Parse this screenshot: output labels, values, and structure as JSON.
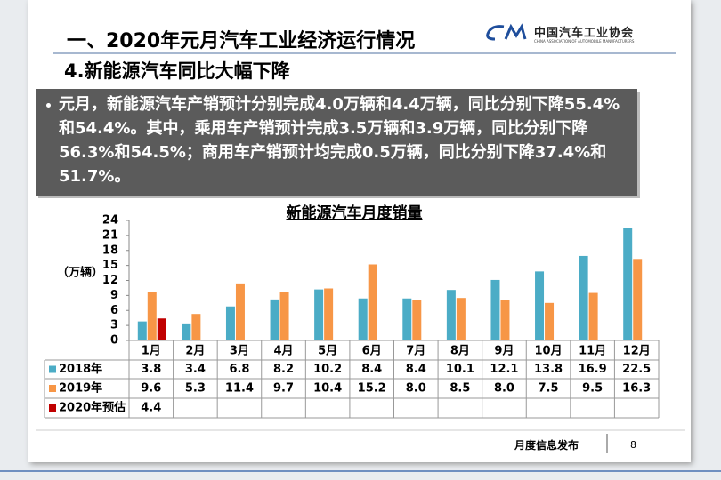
{
  "slide": {
    "header_title": "一、2020年元月汽车工业经济运行情况",
    "logo_name": "中国汽车工业协会",
    "logo_english": "CHINA ASSOCIATION OF AUTOMOBILE MANUFACTURERS",
    "subtitle": "4.新能源汽车同比大幅下降",
    "bullet": "元月，新能源汽车产销预计分别完成4.0万辆和4.4万辆，同比分别下降55.4%和54.4%。其中，乘用车产销预计完成3.5万辆和3.9万辆，同比分别下降56.3%和54.5%；商用车产销预计均完成0.5万辆，同比分别下降37.4%和51.7%。",
    "footer": "月度信息发布",
    "page_number": "8"
  },
  "chart_data": {
    "type": "bar",
    "title": "新能源汽车月度销量",
    "y_label": "（万辆）",
    "categories": [
      "1月",
      "2月",
      "3月",
      "4月",
      "5月",
      "6月",
      "7月",
      "8月",
      "9月",
      "10月",
      "11月",
      "12月"
    ],
    "series": [
      {
        "name": "2018年",
        "color": "#4bacc6",
        "values": [
          3.8,
          3.4,
          6.8,
          8.2,
          10.2,
          8.4,
          8.4,
          10.1,
          12.1,
          13.8,
          16.9,
          22.5
        ]
      },
      {
        "name": "2019年",
        "color": "#f79646",
        "values": [
          9.6,
          5.3,
          11.4,
          9.7,
          10.4,
          15.2,
          8.0,
          8.5,
          8.0,
          7.5,
          9.5,
          16.3
        ],
        "value_labels": [
          "9.6",
          "5.3",
          "11.4",
          "9.7",
          "10.4",
          "15.2",
          "8.0",
          "8.5",
          "8.0",
          "7.5",
          "9.5",
          "16.3"
        ]
      },
      {
        "name": "2020年预估",
        "color": "#c00000",
        "values": [
          4.4,
          null,
          null,
          null,
          null,
          null,
          null,
          null,
          null,
          null,
          null,
          null
        ]
      }
    ],
    "ylim": [
      0,
      24
    ],
    "yticks": [
      0,
      3,
      6,
      9,
      12,
      15,
      18,
      21,
      24
    ],
    "grid": false
  }
}
